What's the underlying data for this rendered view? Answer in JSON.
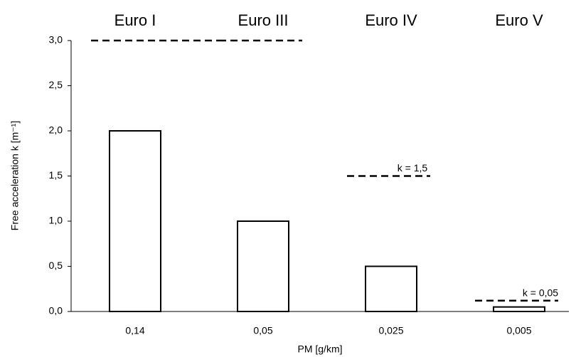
{
  "chart_data": {
    "type": "bar",
    "y_label": "Free acceleration k [m⁻¹]",
    "x_label": "PM [g/km]",
    "groups": [
      "Euro I",
      "Euro III",
      "Euro IV",
      "Euro V"
    ],
    "categories": [
      "0,14",
      "0,05",
      "0,025",
      "0,005"
    ],
    "values": [
      2.0,
      1.0,
      0.5,
      0.05
    ],
    "color": "#ffffff",
    "limits": [
      3.0,
      3.0,
      1.5,
      0.12
    ],
    "annotations": [
      null,
      null,
      "k = 1,5",
      "k = 0,05"
    ],
    "ylim": [
      0,
      3.0
    ],
    "yticks": [
      {
        "value": 0,
        "label": "0,0"
      },
      {
        "value": 0.5,
        "label": "0,5"
      },
      {
        "value": 1.0,
        "label": "1,0"
      },
      {
        "value": 1.5,
        "label": "1,5"
      },
      {
        "value": 2.0,
        "label": "2,0"
      },
      {
        "value": 2.5,
        "label": "2,5"
      },
      {
        "value": 3.0,
        "label": "3,0"
      }
    ]
  }
}
